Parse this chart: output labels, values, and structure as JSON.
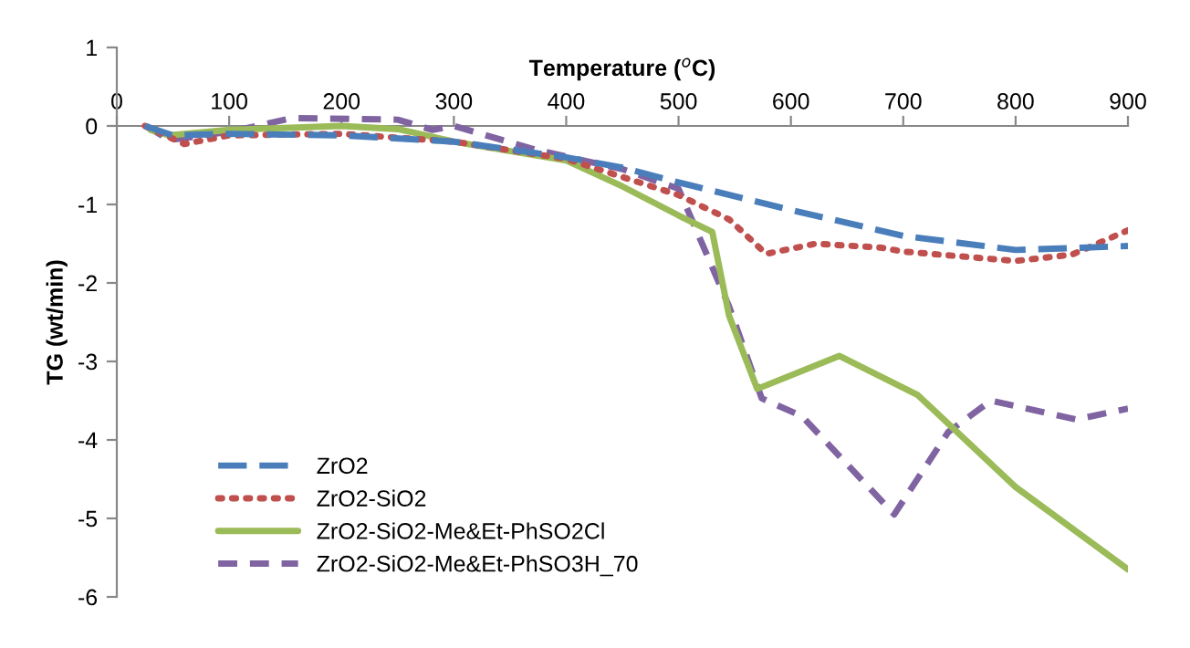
{
  "chart_data": {
    "type": "line",
    "xlabel": "Temperature ($^{o}$C)",
    "ylabel": "TG (wt/min)",
    "xlim": [
      0,
      900
    ],
    "xticks": [
      0,
      100,
      200,
      300,
      400,
      500,
      600,
      700,
      800,
      900
    ],
    "ylim": [
      -6,
      1
    ],
    "yticks": [
      -6,
      -5,
      -4,
      -3,
      -2,
      -1,
      0,
      1
    ],
    "grid": false,
    "legend": "bottom left",
    "marker": "none",
    "series": [
      {
        "name": "ZrO2",
        "color": "#4a7ebb",
        "line_style": "long dashed",
        "x": [
          25,
          50,
          100,
          200,
          300,
          400,
          450,
          500,
          600,
          700,
          800,
          900
        ],
        "values": [
          0,
          -0.12,
          -0.1,
          -0.12,
          -0.2,
          -0.4,
          -0.53,
          -0.72,
          -1.07,
          -1.4,
          -1.58,
          -1.53
        ]
      },
      {
        "name": "ZrO2-SiO2",
        "color": "#c0504d",
        "line_style": "dotted",
        "x": [
          25,
          60,
          100,
          200,
          300,
          400,
          500,
          545,
          578,
          622,
          680,
          700,
          800,
          850,
          900
        ],
        "values": [
          0,
          -0.23,
          -0.12,
          -0.1,
          -0.2,
          -0.42,
          -0.88,
          -1.19,
          -1.63,
          -1.5,
          -1.55,
          -1.6,
          -1.72,
          -1.64,
          -1.33
        ]
      },
      {
        "name": "ZrO2-SiO2-Me&Et-PhSO2Cl",
        "color": "#9bbb59",
        "line_style": "solid",
        "x": [
          30,
          47,
          100,
          200,
          250,
          300,
          400,
          450,
          500,
          530,
          545,
          570,
          643,
          713,
          800,
          900
        ],
        "values": [
          -0.05,
          -0.12,
          -0.05,
          0,
          -0.04,
          -0.2,
          -0.44,
          -0.77,
          -1.14,
          -1.35,
          -2.42,
          -3.35,
          -2.93,
          -3.43,
          -4.6,
          -5.65
        ]
      },
      {
        "name": "ZrO2-SiO2-Me&Et-PhSO3H_70",
        "color": "#8064a2",
        "line_style": "dashed",
        "x": [
          26,
          47,
          102,
          156,
          250,
          281,
          300,
          372,
          450,
          500,
          545,
          574,
          610,
          692,
          740,
          778,
          854,
          900
        ],
        "values": [
          0,
          -0.18,
          -0.07,
          0.1,
          0.08,
          -0.05,
          0,
          -0.3,
          -0.55,
          -0.8,
          -2.3,
          -3.47,
          -3.7,
          -4.95,
          -3.9,
          -3.5,
          -3.74,
          -3.6
        ]
      }
    ]
  }
}
